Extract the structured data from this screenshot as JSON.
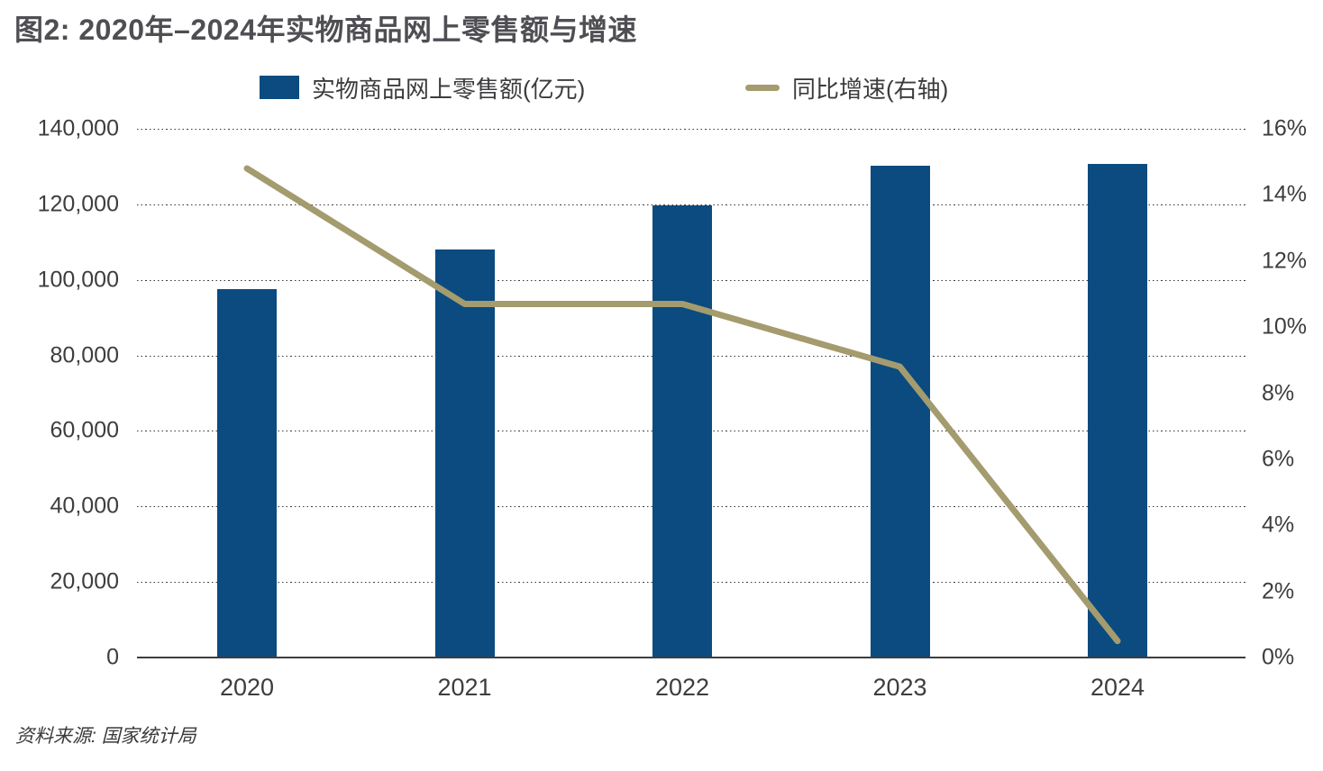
{
  "title": "图2: 2020年–2024年实物商品网上零售额与增速",
  "legend": [
    {
      "label": "实物商品网上零售额(亿元)",
      "marker": "bar-swatch",
      "color": "#0b4b80"
    },
    {
      "label": "同比增速(右轴)",
      "marker": "line-swatch",
      "color": "#a49b6e"
    }
  ],
  "source": "资料来源: 国家统计局",
  "chart_data": {
    "type": "bar",
    "subtype": "bar+line-dual-axis",
    "title": "图2: 2020年–2024年实物商品网上零售额与增速",
    "categories": [
      "2020",
      "2021",
      "2022",
      "2023",
      "2024"
    ],
    "series": [
      {
        "name": "实物商品网上零售额(亿元)",
        "chart": "bar",
        "axis": "left",
        "color": "#0b4b80",
        "values": [
          97590,
          108042,
          119642,
          130174,
          130816
        ]
      },
      {
        "name": "同比增速(右轴)",
        "chart": "line",
        "axis": "right",
        "color": "#a49b6e",
        "unit": "%",
        "values": [
          14.8,
          10.7,
          10.7,
          8.8,
          0.5
        ]
      }
    ],
    "left_axis": {
      "min": 0,
      "max": 140000,
      "step": 20000,
      "tick_labels": [
        "0",
        "20,000",
        "40,000",
        "60,000",
        "80,000",
        "100,000",
        "120,000",
        "140,000"
      ]
    },
    "right_axis": {
      "min": 0,
      "max": 16,
      "step": 2,
      "tick_labels": [
        "0%",
        "2%",
        "4%",
        "6%",
        "8%",
        "10%",
        "12%",
        "14%",
        "16%"
      ]
    },
    "grid": "horizontal-dotted",
    "legend_position": "top"
  }
}
